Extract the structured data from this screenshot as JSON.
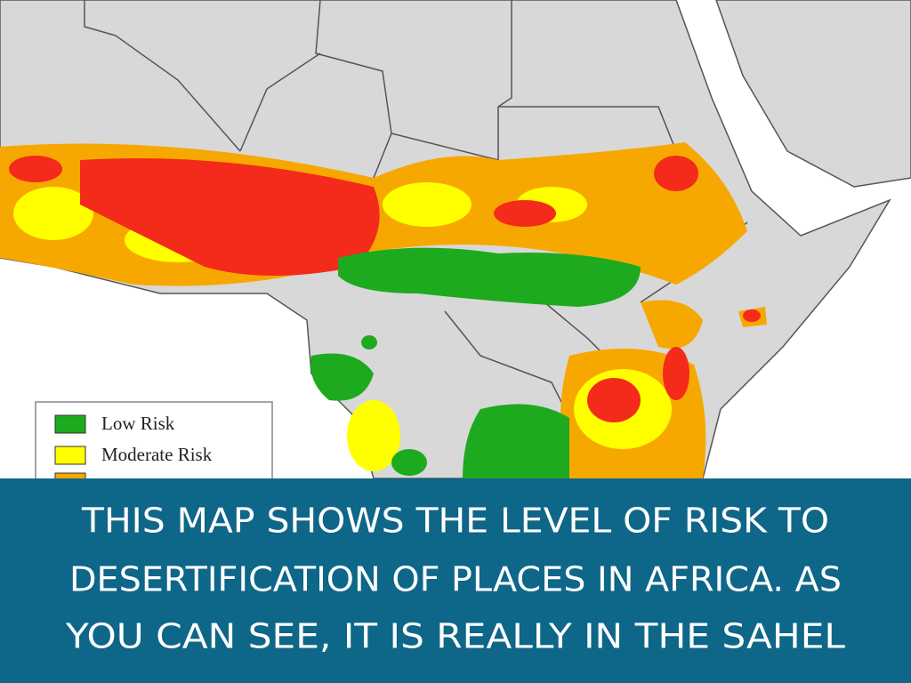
{
  "legend": {
    "items": [
      "Low Risk",
      "Moderate Risk"
    ]
  },
  "caption": {
    "lines": [
      "THIS MAP SHOWS THE LEVEL OF RISK TO",
      "DESERTIFICATION OF PLACES IN AFRICA. AS",
      "YOU CAN SEE, IT IS REALLY IN THE SAHEL"
    ]
  }
}
